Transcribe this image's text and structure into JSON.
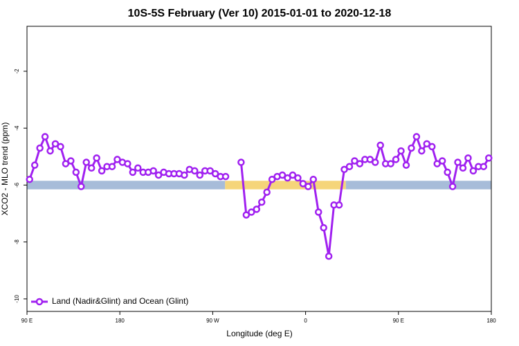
{
  "chart_data": {
    "type": "line",
    "title": "10S-5S February (Ver 10)   2015-01-01 to 2020-12-18",
    "x_label": "Longitude (deg E)",
    "y_label": "XCO2 - MLO trend (ppm)",
    "x": [
      92.5,
      97.5,
      102.5,
      107.5,
      112.5,
      117.5,
      122.5,
      127.5,
      132.5,
      137.5,
      142.5,
      147.5,
      152.5,
      157.5,
      162.5,
      167.5,
      172.5,
      177.5,
      182.5,
      187.5,
      192.5,
      197.5,
      202.5,
      207.5,
      212.5,
      217.5,
      222.5,
      227.5,
      232.5,
      237.5,
      242.5,
      247.5,
      252.5,
      257.5,
      262.5,
      267.5,
      272.5,
      277.5,
      282.5,
      287.5,
      292.5,
      297.5,
      302.5,
      307.5,
      312.5,
      317.5,
      322.5,
      327.5,
      332.5,
      337.5,
      342.5,
      347.5,
      352.5,
      357.5,
      362.5,
      367.5,
      372.5,
      377.5,
      382.5,
      387.5,
      392.5,
      397.5,
      402.5,
      407.5,
      412.5,
      417.5,
      422.5,
      427.5,
      432.5,
      437.5,
      442.5,
      447.5,
      452.5,
      457.5,
      462.5,
      467.5,
      472.5,
      477.5,
      482.5,
      487.5,
      492.5,
      497.5,
      502.5,
      507.5,
      512.5,
      517.5,
      522.5,
      527.5,
      532.5,
      537.5
    ],
    "series": [
      {
        "name": "Land (Nadir&Glint) and Ocean (Glint)",
        "color": "#a020f0",
        "values": [
          -5.8,
          -5.3,
          -4.7,
          -4.3,
          -4.8,
          -4.55,
          -4.65,
          -5.25,
          -5.15,
          -5.55,
          -6.05,
          -5.2,
          -5.4,
          -5.05,
          -5.5,
          -5.35,
          -5.35,
          -5.1,
          -5.2,
          -5.25,
          -5.55,
          -5.4,
          -5.55,
          -5.55,
          -5.5,
          -5.65,
          -5.55,
          -5.6,
          -5.6,
          -5.6,
          -5.65,
          -5.45,
          -5.5,
          -5.65,
          -5.5,
          -5.5,
          -5.6,
          -5.7,
          -5.7,
          null,
          null,
          -5.2,
          -7.05,
          -6.95,
          -6.85,
          -6.6,
          -6.25,
          -5.8,
          -5.7,
          -5.65,
          -5.75,
          -5.65,
          -5.75,
          -5.95,
          -6.05,
          -5.8,
          -6.95,
          -7.5,
          -8.5,
          -6.7,
          -6.7,
          -5.45,
          -5.35,
          -5.15,
          -5.25,
          -5.1,
          -5.1,
          -5.2,
          -4.6,
          -5.25,
          -5.25,
          -5.1,
          -4.8,
          -5.3,
          -4.7,
          -4.3,
          -4.8,
          -4.55,
          -4.65,
          -5.25,
          -5.15,
          -5.55,
          -6.05,
          -5.2,
          -5.4,
          -5.05,
          -5.5,
          -5.35,
          -5.35,
          -5.05
        ]
      }
    ],
    "surface_band": {
      "ylim": [
        -6.15,
        -5.85
      ],
      "regions": [
        {
          "xlim": [
            90,
            282
          ],
          "color": "#a7bcd9"
        },
        {
          "xlim": [
            282,
            399
          ],
          "color": "#f5d57a"
        },
        {
          "xlim": [
            399,
            540
          ],
          "color": "#a7bcd9"
        }
      ]
    },
    "xlim": [
      90,
      540
    ],
    "xticks": [
      {
        "value": 90,
        "label": "90 E"
      },
      {
        "value": 180,
        "label": "180"
      },
      {
        "value": 270,
        "label": "90 W"
      },
      {
        "value": 360,
        "label": "0"
      },
      {
        "value": 450,
        "label": "90 E"
      },
      {
        "value": 540,
        "label": "180"
      }
    ],
    "ylim": [
      -10.44,
      -0.42
    ],
    "yticks": [
      -10,
      -8,
      -6,
      -4,
      -2
    ],
    "legend": "bottom-left"
  }
}
